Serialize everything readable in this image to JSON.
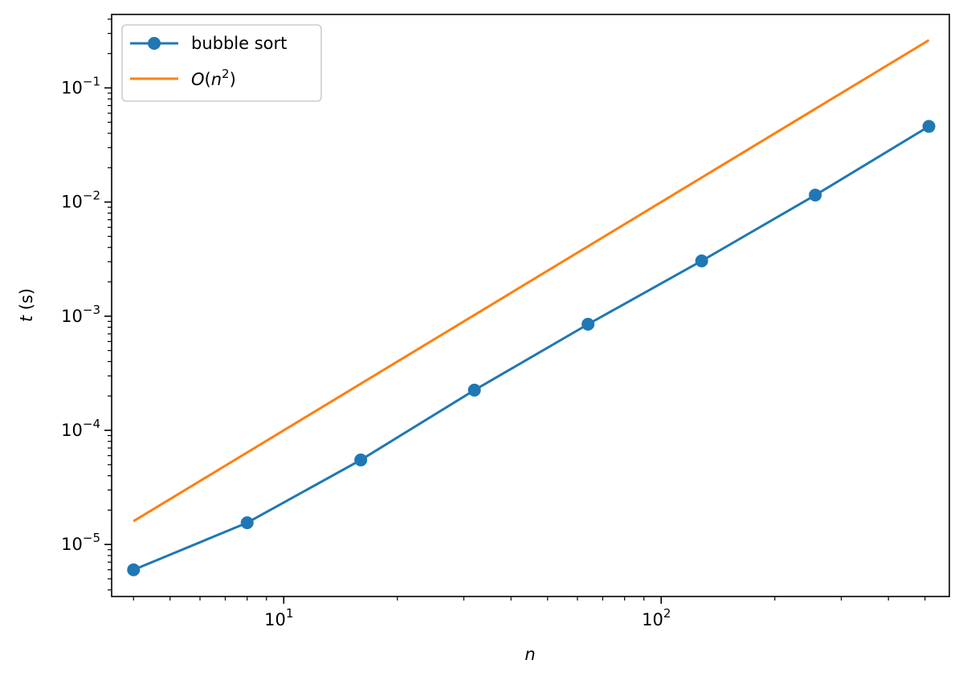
{
  "chart_data": {
    "type": "line",
    "xscale": "log",
    "yscale": "log",
    "xlabel_var": "n",
    "ylabel_var": "t",
    "ylabel_unit": " (s)",
    "xlim": [
      3.5,
      580
    ],
    "ylim": [
      3.5e-06,
      0.44
    ],
    "x_major_ticks": [
      {
        "value": 10,
        "base": "10",
        "exp": "1"
      },
      {
        "value": 100,
        "base": "10",
        "exp": "2"
      }
    ],
    "y_major_ticks": [
      {
        "value": 1e-05,
        "base": "10",
        "exp": "−5"
      },
      {
        "value": 0.0001,
        "base": "10",
        "exp": "−4"
      },
      {
        "value": 0.001,
        "base": "10",
        "exp": "−3"
      },
      {
        "value": 0.01,
        "base": "10",
        "exp": "−2"
      },
      {
        "value": 0.1,
        "base": "10",
        "exp": "−1"
      }
    ],
    "grid": false,
    "legend_position": "top-left",
    "series": [
      {
        "name": "bubble sort",
        "color": "#1f77b4",
        "marker": "circle",
        "x": [
          4,
          8,
          16,
          32,
          64,
          128,
          256,
          512
        ],
        "y": [
          6e-06,
          1.55e-05,
          5.5e-05,
          0.000225,
          0.00085,
          0.00305,
          0.0115,
          0.046
        ]
      },
      {
        "name_parts": {
          "o": "O",
          "open": "(",
          "n": "n",
          "exp": "2",
          "close": ")"
        },
        "color": "#ff7f0e",
        "marker": "none",
        "x": [
          4,
          512
        ],
        "y": [
          1.6e-05,
          0.262
        ]
      }
    ]
  }
}
